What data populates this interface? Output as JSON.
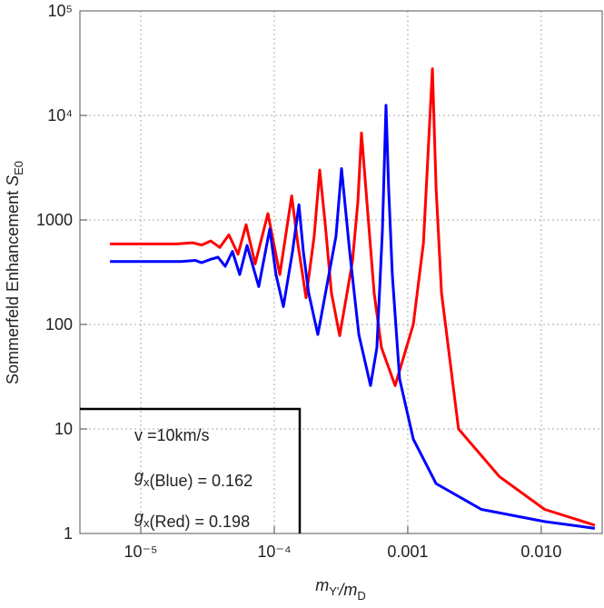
{
  "chart_data": {
    "type": "line",
    "xscale": "log",
    "yscale": "log",
    "grid": true,
    "xlabel": [
      {
        "text": "m",
        "sub": "Y'"
      },
      {
        "text": "/m",
        "sub": "D"
      }
    ],
    "ylabel": [
      {
        "text": "Sommerfeld Enhancement "
      },
      {
        "text": "S",
        "sub": "E0"
      }
    ],
    "xlim": [
      3.5e-06,
      0.0286
    ],
    "ylim": [
      1,
      100000
    ],
    "xticks": [
      {
        "value": 1e-05,
        "label": "10⁻⁵"
      },
      {
        "value": 0.0001,
        "label": "10⁻⁴"
      },
      {
        "value": 0.001,
        "label": "0.001"
      },
      {
        "value": 0.01,
        "label": "0.010"
      }
    ],
    "yticks": [
      1,
      10,
      100,
      1000,
      {
        "value": 10000,
        "label": "10⁴"
      },
      {
        "value": 100000,
        "label": "10⁵"
      }
    ],
    "annotations": [
      [
        {
          "text": "v =10km/s"
        }
      ],
      [
        {
          "text": "g",
          "sub": "x"
        },
        {
          "text": "(Blue) = 0.162"
        }
      ],
      [
        {
          "text": "g",
          "sub": "x"
        },
        {
          "text": "(Red) = 0.198"
        }
      ]
    ],
    "series": [
      {
        "color": "#ff0000",
        "x": [
          5.88e-06,
          1.87e-05,
          2.44e-05,
          2.86e-05,
          3.34e-05,
          3.91e-05,
          4.57e-05,
          5.35e-05,
          6.15e-05,
          7.19e-05,
          8.96e-05,
          0.00011,
          0.000135,
          0.00015,
          0.000173,
          0.000199,
          0.000219,
          0.000241,
          0.000268,
          0.000309,
          0.000385,
          0.000423,
          0.00045,
          0.000494,
          0.00056,
          0.000635,
          0.000804,
          0.0011,
          0.00131,
          0.00153,
          0.00163,
          0.00179,
          0.0024,
          0.00486,
          0.0106,
          0.0252
        ],
        "values": [
          590,
          590,
          605,
          575,
          630,
          545,
          720,
          470,
          900,
          380,
          1150,
          300,
          1700,
          600,
          180,
          700,
          3000,
          900,
          200,
          78,
          400,
          1500,
          6800,
          1500,
          200,
          60,
          26,
          100,
          600,
          28000,
          2000,
          200,
          10,
          3.5,
          1.7,
          1.2
        ]
      },
      {
        "color": "#0000ff",
        "x": [
          5.88e-06,
          2.02e-05,
          2.56e-05,
          2.86e-05,
          3.34e-05,
          3.79e-05,
          4.29e-05,
          4.86e-05,
          5.51e-05,
          6.25e-05,
          7.65e-05,
          9.25e-05,
          0.000103,
          0.000117,
          0.000137,
          0.000153,
          0.000165,
          0.000181,
          0.000212,
          0.00029,
          0.000319,
          0.000367,
          0.00043,
          0.000526,
          0.000587,
          0.000646,
          0.000687,
          0.000719,
          0.000766,
          0.000869,
          0.0011,
          0.00163,
          0.00356,
          0.0106,
          0.0252
        ],
        "values": [
          400,
          400,
          410,
          390,
          420,
          440,
          360,
          500,
          300,
          570,
          230,
          820,
          300,
          148,
          500,
          1400,
          500,
          200,
          80,
          700,
          3100,
          500,
          80,
          26,
          60,
          800,
          12500,
          2000,
          300,
          30,
          8,
          3,
          1.7,
          1.3,
          1.12
        ]
      }
    ]
  }
}
